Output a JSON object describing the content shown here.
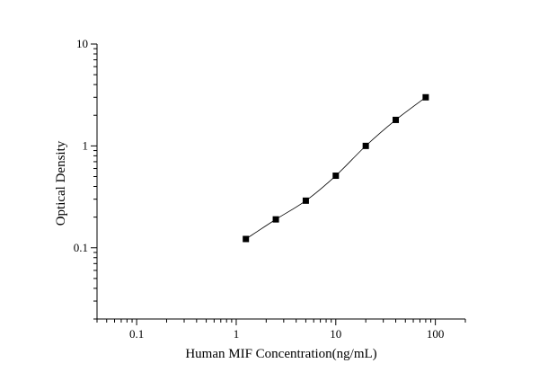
{
  "chart_data": {
    "type": "scatter",
    "title": "",
    "xlabel": "Human MIF Concentration(ng/mL)",
    "ylabel": "Optical Density",
    "xscale": "log",
    "yscale": "log",
    "xlim": [
      0.04,
      200
    ],
    "ylim": [
      0.02,
      10
    ],
    "x_ticks": [
      0.1,
      1,
      10,
      100
    ],
    "x_tick_labels": [
      "0.1",
      "1",
      "10",
      "100"
    ],
    "y_ticks": [
      0.1,
      1,
      10
    ],
    "y_tick_labels": [
      "0.1",
      "1",
      "10"
    ],
    "grid": false,
    "legend": "none",
    "marker": "square",
    "series": [
      {
        "x": [
          1.25,
          2.5,
          5,
          10,
          20,
          40,
          80
        ],
        "y": [
          0.122,
          0.19,
          0.29,
          0.51,
          1.0,
          1.8,
          3.0
        ]
      }
    ],
    "fit_curve": true
  }
}
